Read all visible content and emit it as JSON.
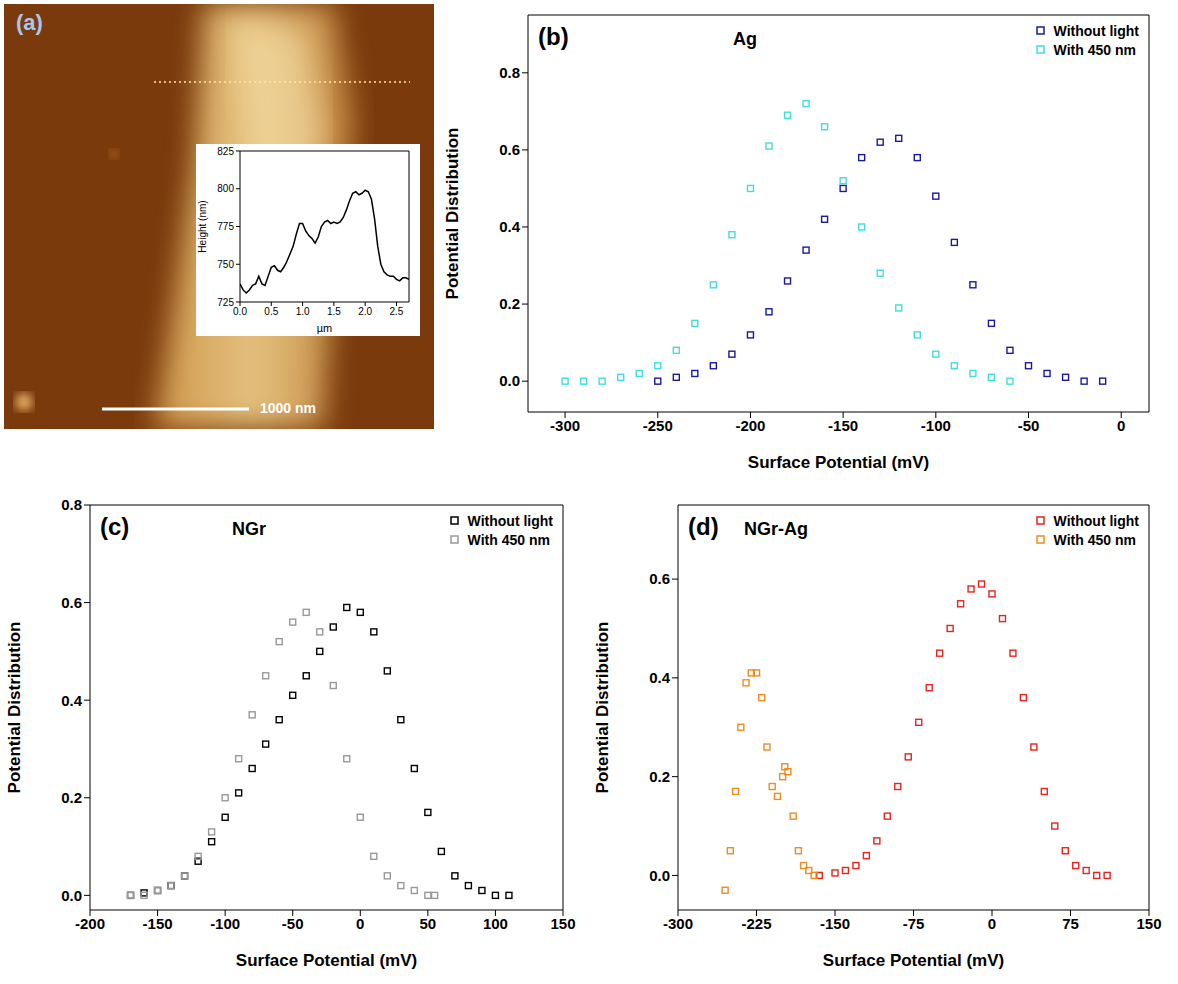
{
  "chart_data": [
    {
      "type": "line",
      "panel": "(a)",
      "annotations": [
        "1000 nm"
      ],
      "x_label": "µm",
      "y_label": "Height (nm)",
      "color": "#000000",
      "x": [
        0,
        0.05,
        0.1,
        0.15,
        0.2,
        0.25,
        0.3,
        0.35,
        0.4,
        0.45,
        0.5,
        0.55,
        0.6,
        0.65,
        0.7,
        0.75,
        0.8,
        0.85,
        0.9,
        0.95,
        1.0,
        1.05,
        1.1,
        1.15,
        1.2,
        1.25,
        1.3,
        1.35,
        1.4,
        1.45,
        1.5,
        1.55,
        1.6,
        1.65,
        1.7,
        1.75,
        1.8,
        1.85,
        1.9,
        1.95,
        2.0,
        2.05,
        2.1,
        2.15,
        2.2,
        2.25,
        2.3,
        2.35,
        2.4,
        2.45,
        2.5,
        2.55,
        2.6,
        2.65,
        2.7
      ],
      "values": [
        737,
        733,
        731,
        733,
        736,
        737,
        742,
        737,
        736,
        742,
        748,
        749,
        746,
        745,
        748,
        752,
        757,
        762,
        770,
        777,
        777,
        772,
        769,
        767,
        764,
        768,
        775,
        778,
        779,
        777,
        778,
        777,
        778,
        781,
        786,
        792,
        797,
        798,
        796,
        797,
        799,
        798,
        793,
        780,
        762,
        750,
        745,
        743,
        742,
        742,
        740,
        739,
        741,
        741,
        740
      ],
      "xlim": [
        0,
        2.7
      ],
      "xticks": [
        {
          "value": 0,
          "label": "0.0"
        },
        0.5,
        {
          "value": 1,
          "label": "1.0"
        },
        1.5,
        {
          "value": 2,
          "label": "2.0"
        },
        2.5
      ],
      "ylim": [
        725,
        825
      ],
      "yticks": [
        725,
        750,
        775,
        800,
        825
      ]
    },
    {
      "type": "scatter",
      "panel": "(b)",
      "title": "Ag",
      "x_label": "Surface Potential (mV)",
      "y_label": "Potential Distribution",
      "legend": "upper right",
      "xlim": [
        -320,
        15
      ],
      "xticks": [
        -300,
        -250,
        -200,
        -150,
        -100,
        -50,
        0
      ],
      "ylim": [
        -0.08,
        0.95
      ],
      "yticks": [
        {
          "value": 0,
          "label": "0.0"
        },
        0.2,
        0.4,
        0.6,
        0.8
      ],
      "series": [
        {
          "name": "Without light",
          "color": "#1a1aa0",
          "marker": "square",
          "x": [
            -250,
            -240,
            -230,
            -220,
            -210,
            -200,
            -190,
            -180,
            -170,
            -160,
            -150,
            -140,
            -130,
            -120,
            -110,
            -100,
            -90,
            -80,
            -70,
            -60,
            -50,
            -40,
            -30,
            -20,
            -10
          ],
          "values": [
            0,
            0.01,
            0.02,
            0.04,
            0.07,
            0.12,
            0.18,
            0.26,
            0.34,
            0.42,
            0.5,
            0.58,
            0.62,
            0.63,
            0.58,
            0.48,
            0.36,
            0.25,
            0.15,
            0.08,
            0.04,
            0.02,
            0.01,
            0,
            0
          ]
        },
        {
          "name": "With 450 nm",
          "color": "#40dede",
          "marker": "square",
          "x": [
            -300,
            -290,
            -280,
            -270,
            -260,
            -250,
            -240,
            -230,
            -220,
            -210,
            -200,
            -190,
            -180,
            -170,
            -160,
            -150,
            -140,
            -130,
            -120,
            -110,
            -100,
            -90,
            -80,
            -70,
            -60
          ],
          "values": [
            0,
            0,
            0,
            0.01,
            0.02,
            0.04,
            0.08,
            0.15,
            0.25,
            0.38,
            0.5,
            0.61,
            0.69,
            0.72,
            0.66,
            0.52,
            0.4,
            0.28,
            0.19,
            0.12,
            0.07,
            0.04,
            0.02,
            0.01,
            0
          ]
        }
      ]
    },
    {
      "type": "scatter",
      "panel": "(c)",
      "title": "NGr",
      "x_label": "Surface Potential (mV)",
      "y_label": "Potential Distribution",
      "legend": "upper right",
      "xlim": [
        -200,
        150
      ],
      "xticks": [
        -200,
        -150,
        -100,
        -50,
        0,
        50,
        100,
        150
      ],
      "ylim": [
        -0.03,
        0.8
      ],
      "yticks": [
        {
          "value": 0,
          "label": "0.0"
        },
        0.2,
        0.4,
        0.6,
        0.8
      ],
      "series": [
        {
          "name": "Without light",
          "color": "#000000",
          "marker": "square",
          "x": [
            -170,
            -160,
            -150,
            -140,
            -130,
            -120,
            -110,
            -100,
            -90,
            -80,
            -70,
            -60,
            -50,
            -40,
            -30,
            -20,
            -10,
            0,
            10,
            20,
            30,
            40,
            50,
            60,
            70,
            80,
            90,
            100,
            110
          ],
          "values": [
            0,
            0.005,
            0.01,
            0.02,
            0.04,
            0.07,
            0.11,
            0.16,
            0.21,
            0.26,
            0.31,
            0.36,
            0.41,
            0.45,
            0.5,
            0.55,
            0.59,
            0.58,
            0.54,
            0.46,
            0.36,
            0.26,
            0.17,
            0.09,
            0.04,
            0.02,
            0.01,
            0,
            0
          ]
        },
        {
          "name": "With 450 nm",
          "color": "#999999",
          "marker": "square",
          "x": [
            -170,
            -160,
            -150,
            -140,
            -130,
            -120,
            -110,
            -100,
            -90,
            -80,
            -70,
            -60,
            -50,
            -40,
            -30,
            -20,
            -10,
            0,
            10,
            20,
            30,
            40,
            50,
            55
          ],
          "values": [
            0,
            0,
            0.01,
            0.02,
            0.04,
            0.08,
            0.13,
            0.2,
            0.28,
            0.37,
            0.45,
            0.52,
            0.56,
            0.58,
            0.54,
            0.43,
            0.28,
            0.16,
            0.08,
            0.04,
            0.02,
            0.01,
            0,
            0
          ]
        }
      ]
    },
    {
      "type": "scatter",
      "panel": "(d)",
      "title": "NGr-Ag",
      "x_label": "Surface Potential (mV)",
      "y_label": "Potential Distribution",
      "legend": "upper right",
      "xlim": [
        -300,
        150
      ],
      "xticks": [
        -300,
        -225,
        -150,
        -75,
        0,
        75,
        150
      ],
      "ylim": [
        -0.07,
        0.75
      ],
      "yticks": [
        {
          "value": 0,
          "label": "0.0"
        },
        0.2,
        0.4,
        0.6
      ],
      "series": [
        {
          "name": "Without light",
          "color": "#e8241c",
          "marker": "square",
          "x": [
            -165,
            -150,
            -140,
            -130,
            -120,
            -110,
            -100,
            -90,
            -80,
            -70,
            -60,
            -50,
            -40,
            -30,
            -20,
            -10,
            0,
            10,
            20,
            30,
            40,
            50,
            60,
            70,
            80,
            90,
            100,
            110
          ],
          "values": [
            0,
            0.005,
            0.01,
            0.02,
            0.04,
            0.07,
            0.12,
            0.18,
            0.24,
            0.31,
            0.38,
            0.45,
            0.5,
            0.55,
            0.58,
            0.59,
            0.57,
            0.52,
            0.45,
            0.36,
            0.26,
            0.17,
            0.1,
            0.05,
            0.02,
            0.01,
            0,
            0
          ]
        },
        {
          "name": "With 450 nm",
          "color": "#f08c1e",
          "marker": "square",
          "x": [
            -255,
            -250,
            -245,
            -240,
            -235,
            -230,
            -225,
            -220,
            -215,
            -210,
            -205,
            -200,
            -198,
            -195,
            -190,
            -185,
            -180,
            -175,
            -170
          ],
          "values": [
            -0.03,
            0.05,
            0.17,
            0.3,
            0.39,
            0.41,
            0.41,
            0.36,
            0.26,
            0.18,
            0.16,
            0.2,
            0.22,
            0.21,
            0.12,
            0.05,
            0.02,
            0.01,
            0
          ]
        }
      ]
    }
  ]
}
